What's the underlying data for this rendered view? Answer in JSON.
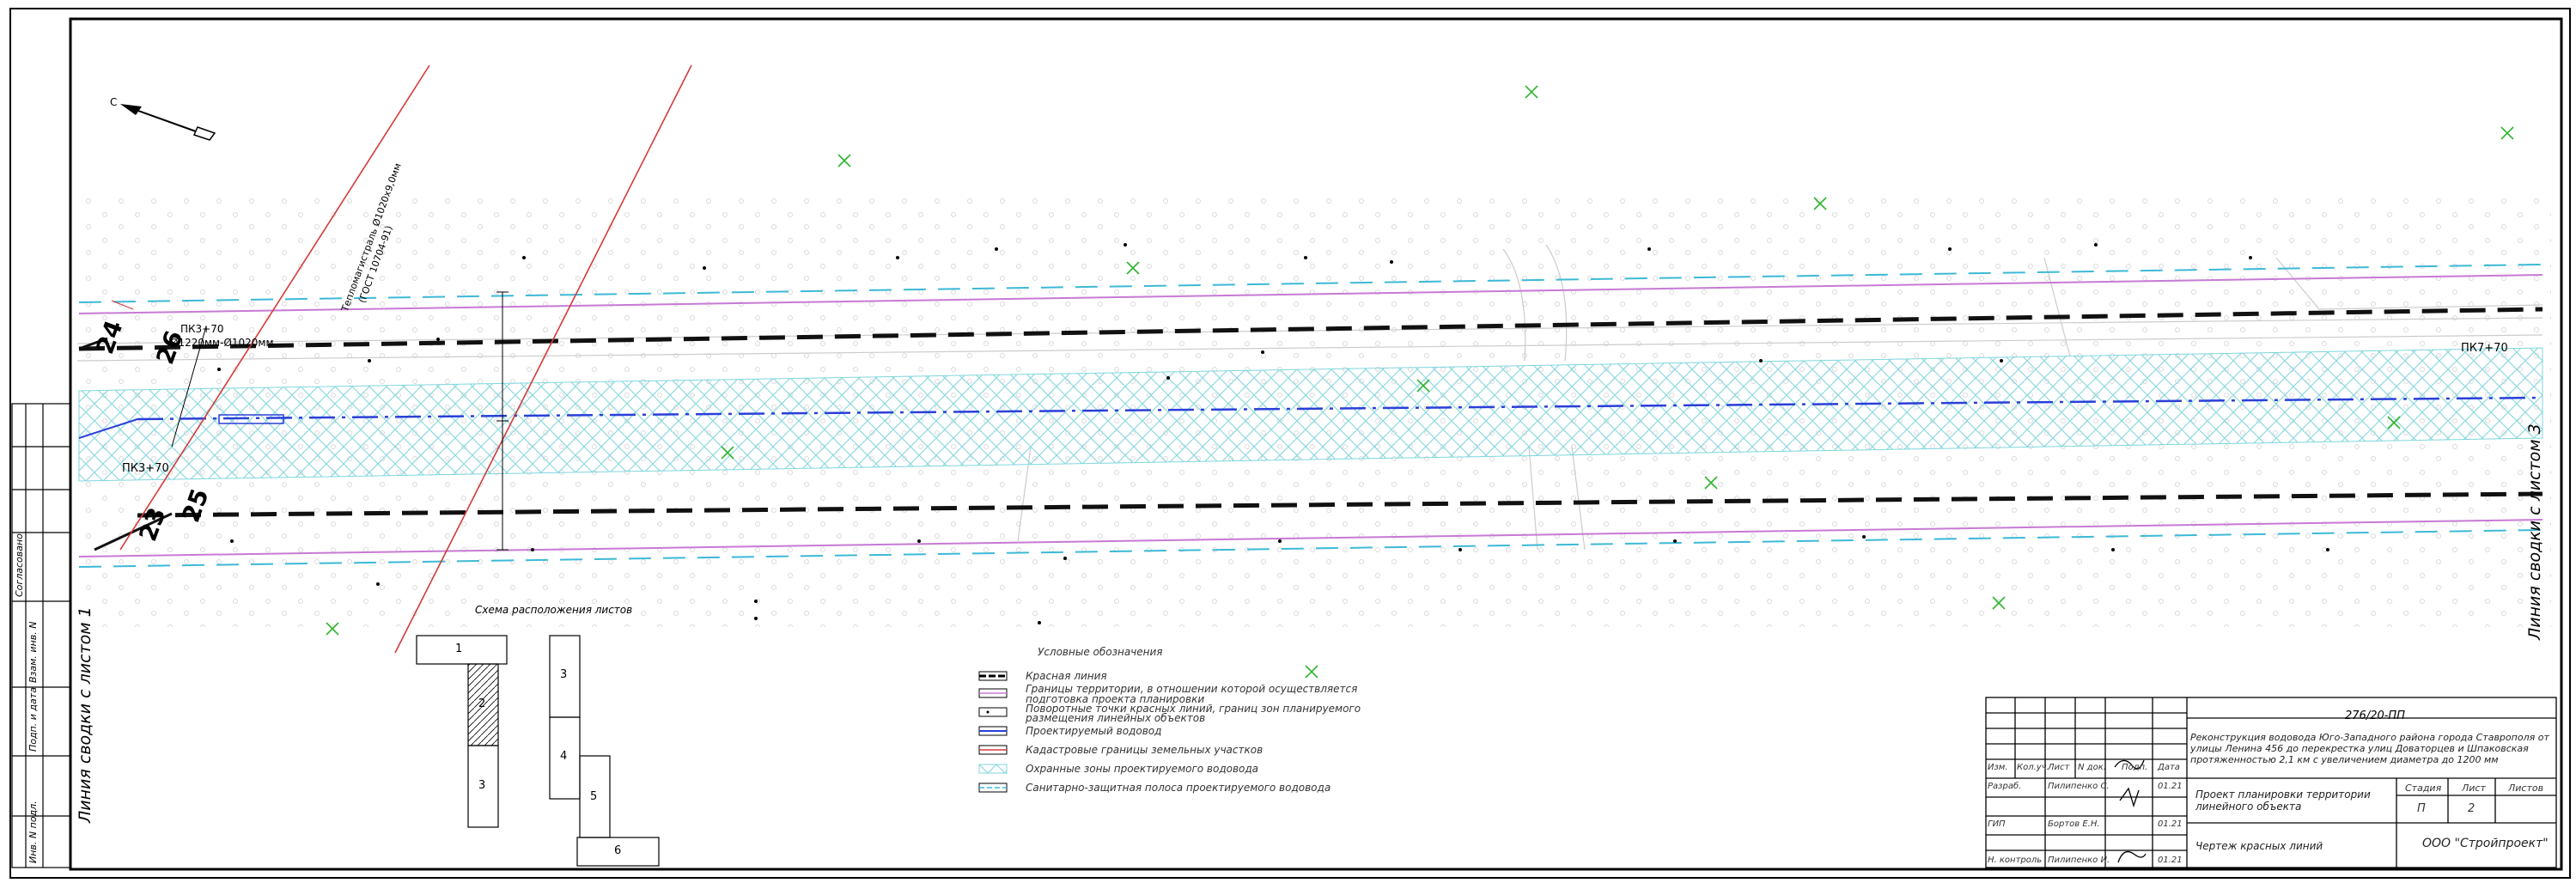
{
  "page": {
    "title": "Чертеж красных линий"
  },
  "north_arrow": {
    "label": "С"
  },
  "match_lines": {
    "left": "Линия сводки с листом 1",
    "right": "Линия сводки с листом 3"
  },
  "left_stamp": {
    "labels": [
      "Согласовано",
      "Взам. инв. N",
      "Подп. и дата",
      "Инв. N подл."
    ]
  },
  "piketage": {
    "pk_start": "ПК3+70",
    "pk_top": "ПК3+70",
    "pk_end": "ПК7+70"
  },
  "turn_points": [
    "24",
    "26",
    "23",
    "25"
  ],
  "pipe_labels": [
    "Ø1220мм-Ø1020мм",
    "Тепломагистраль Ø1020х9,0мм",
    "(ГОСТ 10704-91)"
  ],
  "sheet_scheme": {
    "title": "Схема расположения листов",
    "sheets": [
      "1",
      "2",
      "3",
      "3",
      "4",
      "5",
      "6"
    ]
  },
  "legend": {
    "title": "Условные обозначения",
    "items": [
      {
        "text": "Красная линия",
        "symbol": "red-line"
      },
      {
        "text": "Границы территории, в отношении которой осуществляется\nподготовка проекта планировки",
        "symbol": "territory-boundary"
      },
      {
        "text": "Поворотные точки красных линий, границ зон планируемого\nразмещения линейных объектов",
        "symbol": "turn-point"
      },
      {
        "text": "Проектируемый водовод",
        "symbol": "water-main"
      },
      {
        "text": "Кадастровые границы земельных участков",
        "symbol": "cadastral"
      },
      {
        "text": "Охранные зоны проектируемого водовода",
        "symbol": "protection-zone"
      },
      {
        "text": "Санитарно-защитная полоса проектируемого водовода",
        "symbol": "sanitary-strip"
      }
    ]
  },
  "title_block": {
    "doc_code": "276/20-ПП",
    "project_title": "Реконструкция водовода Юго-Западного района города Ставрополя от улицы Ленина 456 до перекрестка улиц Доваторцев и Шпаковская протяженностью 2,1 км с увеличением диаметра до 1200 мм",
    "columns": [
      "Изм.",
      "Кол.уч.",
      "Лист",
      "N док.",
      "Подп.",
      "Дата"
    ],
    "rows": [
      {
        "role": "Разраб.",
        "name": "Пилипенко С.",
        "date": "01.21"
      },
      {
        "role": "ГИП",
        "name": "Бортов Е.Н.",
        "date": "01.21"
      },
      {
        "role": "Н. контроль",
        "name": "Пилипенко И.",
        "date": "01.21"
      }
    ],
    "object_name": "Проект планировки территории линейного объекта",
    "stage_header": "Стадия",
    "sheet_header": "Лист",
    "sheets_header": "Листов",
    "stage": "П",
    "sheet": "2",
    "sheets": "",
    "drawing_name": "Чертеж красных линий",
    "company": "ООО \"Стройпроект\""
  },
  "colors": {
    "red_line": "#111111",
    "cadastral": "#d43a3a",
    "water_main": "#2a3fd8",
    "protection_zone": "#7fd6dc",
    "sanitary": "#3cb9d6",
    "territory": "#c77ad4",
    "marker": "#2fb52f"
  }
}
